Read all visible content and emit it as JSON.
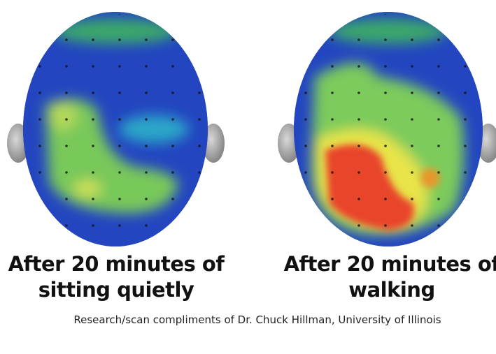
{
  "panels": [
    {
      "caption": [
        "After 20 minutes of",
        "sitting quietly"
      ]
    },
    {
      "caption": [
        "After 20 minutes of",
        "walking"
      ]
    }
  ],
  "credit": "Research/scan compliments of Dr. Chuck Hillman, University of Illinois"
}
